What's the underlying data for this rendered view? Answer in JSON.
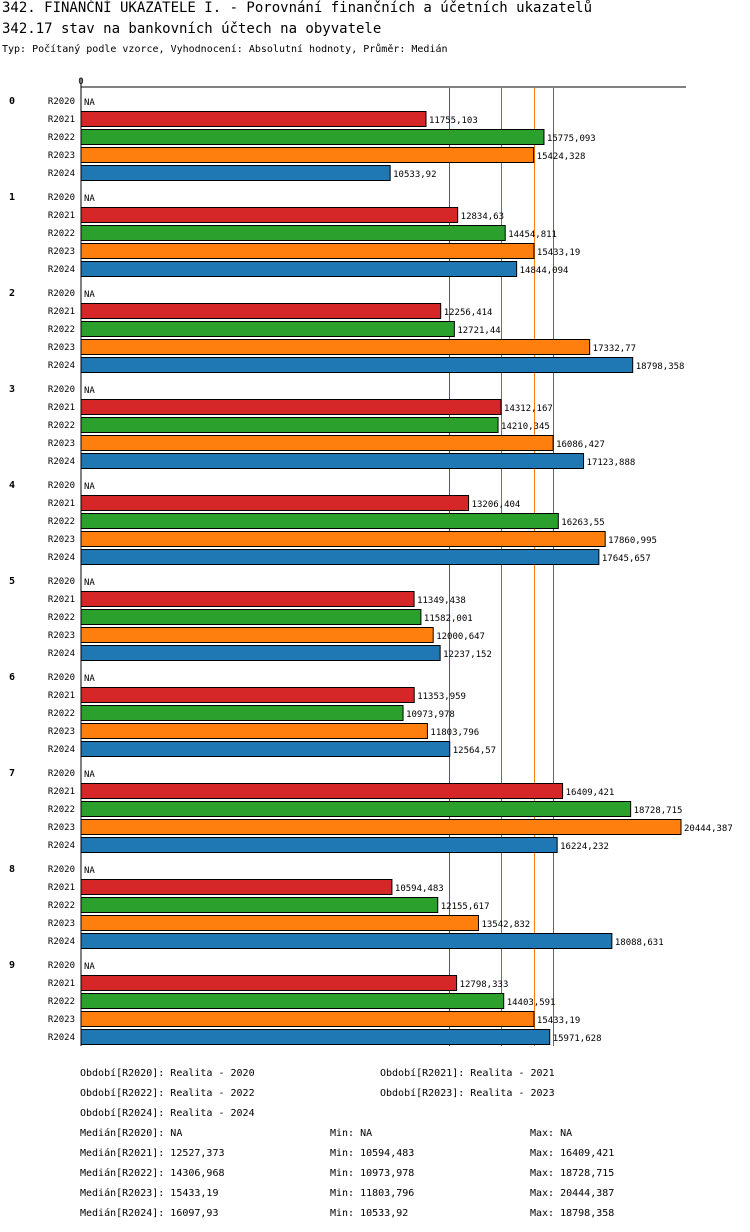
{
  "header": {
    "title": "342. FINANČNÍ UKAZATELE I. - Porovnání finančních a účetních ukazatelů",
    "subtitle": "342.17 stav na bankovních účtech na obyvatele",
    "type_line": "Typ: Počítaný podle vzorce, Vyhodnocení: Absolutní hodnoty, Průměr: Medián"
  },
  "chart_data": {
    "type": "bar",
    "orientation": "horizontal",
    "title": "342.17 stav na bankovních účtech na obyvatele",
    "x_axis_zero_label": "0",
    "groups": [
      "0",
      "1",
      "2",
      "3",
      "4",
      "5",
      "6",
      "7",
      "8",
      "9"
    ],
    "series": [
      {
        "name": "R2020",
        "color": "#ffffff",
        "values": [
          null,
          null,
          null,
          null,
          null,
          null,
          null,
          null,
          null,
          null
        ],
        "labels": [
          "NA",
          "NA",
          "NA",
          "NA",
          "NA",
          "NA",
          "NA",
          "NA",
          "NA",
          "NA"
        ]
      },
      {
        "name": "R2021",
        "color": "#d62728",
        "values": [
          11755.103,
          12834.63,
          12256.414,
          14312.167,
          13206.404,
          11349.438,
          11353.959,
          16409.421,
          10594.483,
          12798.333
        ],
        "labels": [
          "11755,103",
          "12834,63",
          "12256,414",
          "14312,167",
          "13206,404",
          "11349,438",
          "11353,959",
          "16409,421",
          "10594,483",
          "12798,333"
        ]
      },
      {
        "name": "R2022",
        "color": "#2ca02c",
        "values": [
          15775.093,
          14454.811,
          12721.44,
          14210.345,
          16263.55,
          11582.001,
          10973.978,
          18728.715,
          12155.617,
          14403.591
        ],
        "labels": [
          "15775,093",
          "14454,811",
          "12721,44",
          "14210,345",
          "16263,55",
          "11582,001",
          "10973,978",
          "18728,715",
          "12155,617",
          "14403,591"
        ]
      },
      {
        "name": "R2023",
        "color": "#ff7f0e",
        "values": [
          15424.328,
          15433.19,
          17332.77,
          16086.427,
          17860.995,
          12000.647,
          11803.796,
          20444.387,
          13542.832,
          15433.19
        ],
        "labels": [
          "15424,328",
          "15433,19",
          "17332,77",
          "16086,427",
          "17860,995",
          "12000,647",
          "11803,796",
          "20444,387",
          "13542,832",
          "15433,19"
        ]
      },
      {
        "name": "R2024",
        "color": "#1f77b4",
        "values": [
          10533.92,
          14844.094,
          18798.358,
          17123.888,
          17645.657,
          12237.152,
          12564.57,
          16224.232,
          18088.631,
          15971.628
        ],
        "labels": [
          "10533,92",
          "14844,094",
          "18798,358",
          "17123,888",
          "17645,657",
          "12237,152",
          "12564,57",
          "16224,232",
          "18088,631",
          "15971,628"
        ]
      }
    ],
    "median_lines": [
      {
        "series": "R2021",
        "value": 12527.373,
        "color": "#d62728"
      },
      {
        "series": "R2022",
        "value": 14306.968,
        "color": "#2ca02c"
      },
      {
        "series": "R2023",
        "value": 15433.19,
        "color": "#ff7f0e"
      },
      {
        "series": "R2024",
        "value": 16097.93,
        "color": "#1f77b4"
      }
    ],
    "xlim": [
      0,
      20444.387
    ]
  },
  "legend": {
    "periods": [
      "Období[R2020]: Realita - 2020",
      "Období[R2021]: Realita - 2021",
      "Období[R2022]: Realita - 2022",
      "Období[R2023]: Realita - 2023",
      "Období[R2024]: Realita - 2024"
    ],
    "stats": [
      {
        "median": "Medián[R2020]: NA",
        "min": "Min: NA",
        "max": "Max: NA"
      },
      {
        "median": "Medián[R2021]: 12527,373",
        "min": "Min: 10594,483",
        "max": "Max: 16409,421"
      },
      {
        "median": "Medián[R2022]: 14306,968",
        "min": "Min: 10973,978",
        "max": "Max: 18728,715"
      },
      {
        "median": "Medián[R2023]: 15433,19",
        "min": "Min: 11803,796",
        "max": "Max: 20444,387"
      },
      {
        "median": "Medián[R2024]: 16097,93",
        "min": "Min: 10533,92",
        "max": "Max: 18798,358"
      }
    ]
  }
}
